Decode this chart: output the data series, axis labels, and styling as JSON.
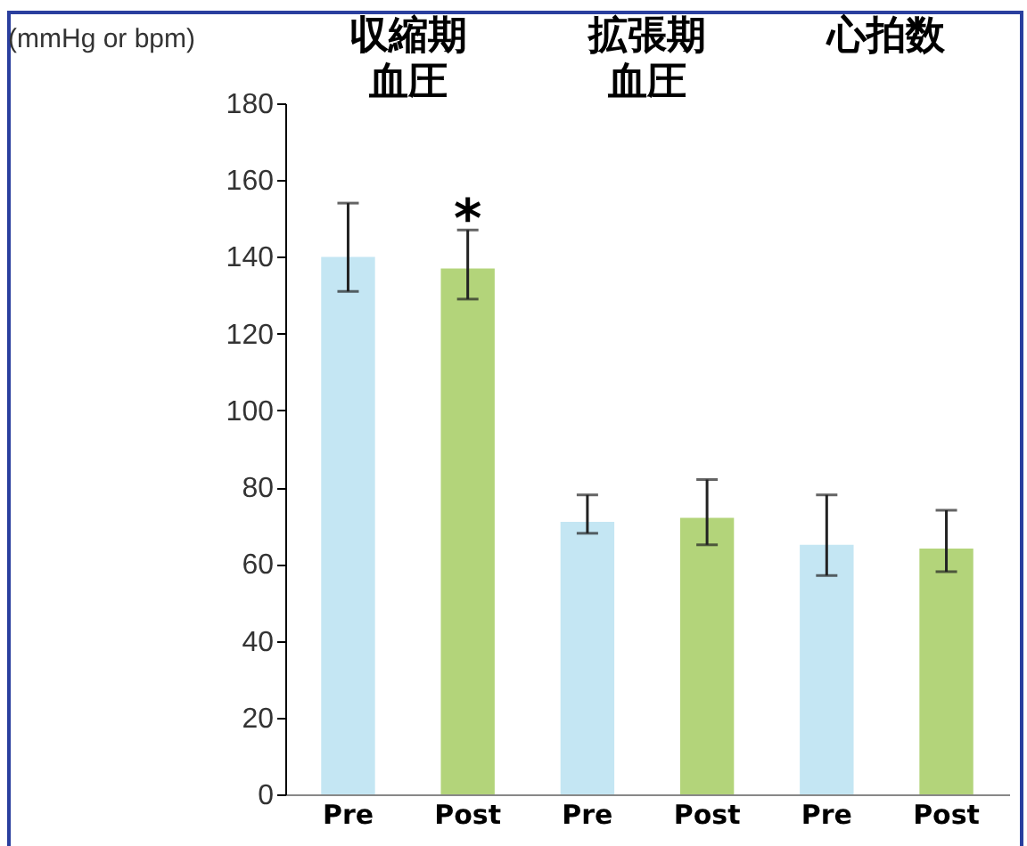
{
  "chart_data": {
    "type": "bar",
    "ylabel": "(mmHg or bpm)",
    "categories": [
      "Pre",
      "Post",
      "Pre",
      "Post",
      "Pre",
      "Post"
    ],
    "values": [
      140,
      137,
      71,
      72,
      65,
      64
    ],
    "colors": [
      "#c4e6f3",
      "#b3d47a",
      "#c4e6f3",
      "#b3d47a",
      "#c4e6f3",
      "#b3d47a"
    ],
    "errors": [
      [
        131,
        154
      ],
      [
        129,
        147
      ],
      [
        68,
        78
      ],
      [
        65,
        82
      ],
      [
        57,
        78
      ],
      [
        58,
        74
      ]
    ],
    "ylim": [
      0,
      180
    ],
    "yticks": [
      0,
      20,
      40,
      60,
      80,
      100,
      120,
      140,
      160,
      180
    ],
    "grid": false,
    "annotations": [
      "収縮期血圧",
      "拡張期血圧",
      "心拍数",
      "*"
    ]
  }
}
